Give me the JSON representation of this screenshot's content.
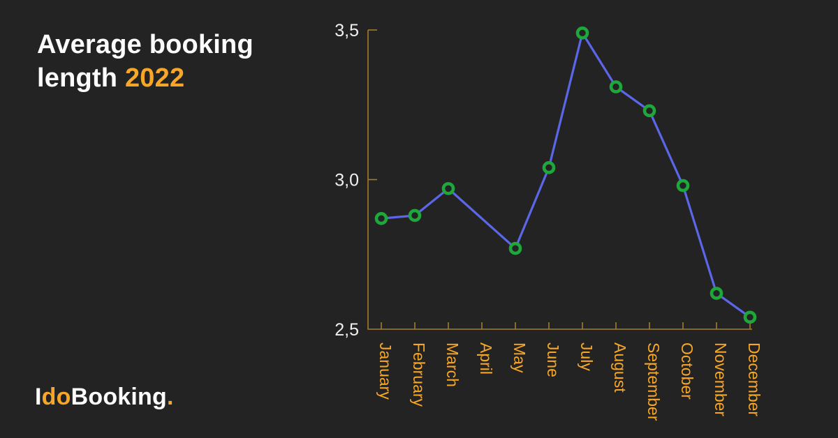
{
  "card": {
    "title_line1": "Average booking",
    "title_line2_prefix": "length ",
    "title_year": "2022",
    "logo": {
      "part1": "I",
      "part2": "do",
      "part3": "Booking",
      "dot": "."
    }
  },
  "colors": {
    "background": "#232323",
    "accent_orange": "#f7a628",
    "axis_gold": "#a57c2b",
    "line_blue": "#5b67e8",
    "marker_green": "#1ea83c",
    "text_white": "#fcfcfc",
    "y_label_white": "#f1f0ee"
  },
  "chart_data": {
    "type": "line",
    "title": "Average booking length 2022",
    "x": [
      "January",
      "February",
      "March",
      "April",
      "May",
      "June",
      "July",
      "August",
      "September",
      "October",
      "November",
      "December"
    ],
    "series": [
      {
        "name": "Average booking length",
        "values": [
          2.87,
          2.88,
          2.97,
          null,
          2.77,
          3.04,
          3.49,
          3.31,
          3.23,
          2.98,
          2.62,
          2.54
        ]
      }
    ],
    "ylim": [
      2.5,
      3.5
    ],
    "y_ticks": [
      {
        "label": "3,5",
        "value": 3.5,
        "tick": true
      },
      {
        "label": "3,0",
        "value": 3.0,
        "tick": true
      },
      {
        "label": "2,5",
        "value": 2.5,
        "tick": false
      }
    ],
    "grid": false,
    "legend": false,
    "x_labels_rotation_deg": 90,
    "style": {
      "axis_color": "#a57c2b",
      "line_color": "#5b67e8",
      "marker_stroke": "#1ea83c",
      "marker_fill": "#232323",
      "x_label_color": "#f7a628",
      "y_label_color": "#f1f0ee"
    }
  }
}
